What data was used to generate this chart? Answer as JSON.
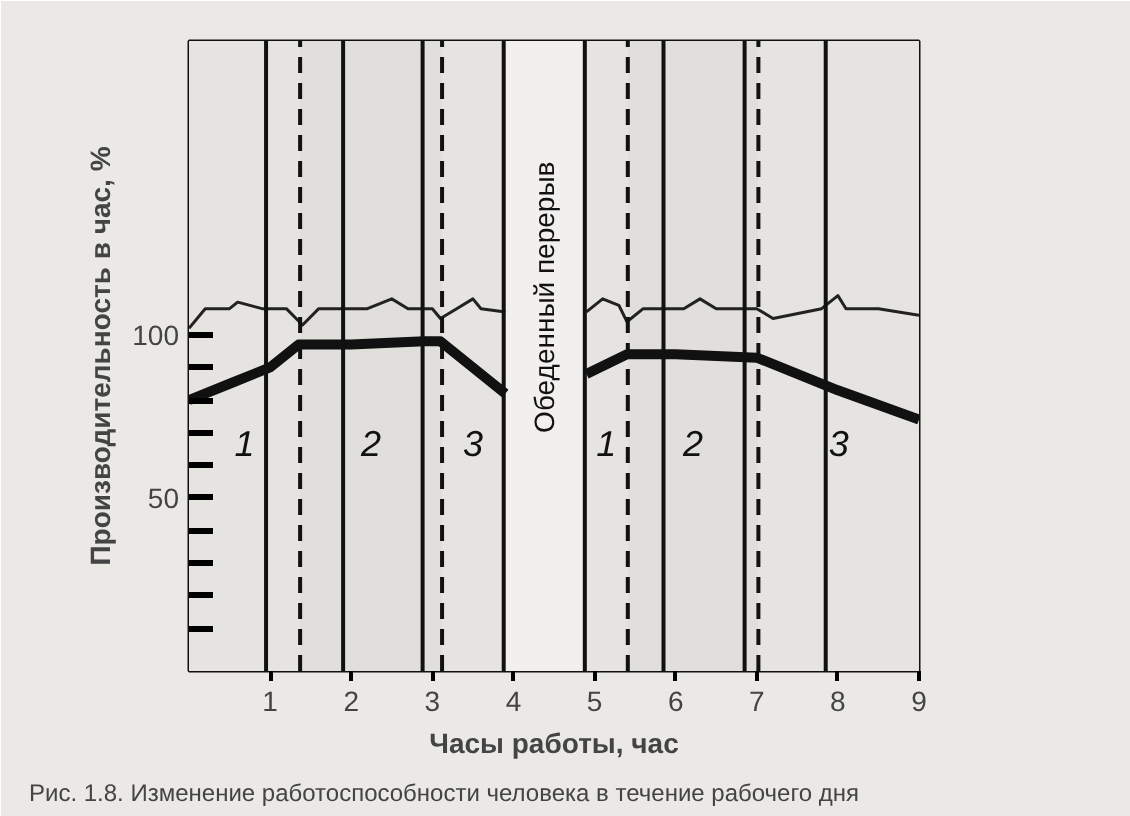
{
  "chart_data": {
    "type": "line",
    "xlabel": "Часы работы, час",
    "ylabel": "Производительность в час, %",
    "xlim": [
      0,
      9
    ],
    "ylim": [
      -3,
      190
    ],
    "xticks": [
      1,
      2,
      3,
      4,
      5,
      6,
      7,
      8,
      9
    ],
    "yticks": [
      {
        "value": 10,
        "label": null
      },
      {
        "value": 20,
        "label": null
      },
      {
        "value": 30,
        "label": null
      },
      {
        "value": 40,
        "label": null
      },
      50,
      {
        "value": 60,
        "label": null
      },
      {
        "value": 70,
        "label": null
      },
      {
        "value": 80,
        "label": null
      },
      {
        "value": 90,
        "label": null
      },
      100
    ],
    "grid": false,
    "marker": "none",
    "line_style": "solid",
    "x": [
      0,
      0.5,
      1,
      1.35,
      2,
      2.9,
      3.1,
      3.9,
      4.4,
      4.9,
      5.4,
      6,
      7,
      8,
      9
    ],
    "series": [
      {
        "color": "#111111",
        "values": [
          80,
          85,
          90,
          97,
          97,
          98,
          98,
          82,
          null,
          88,
          94,
          94,
          93,
          83,
          74
        ]
      },
      {
        "color": "#222222",
        "x": [
          0,
          0.2,
          0.5,
          0.6,
          0.9,
          1.2,
          1.4,
          1.6,
          2.2,
          2.5,
          2.7,
          3.0,
          3.1,
          3.3,
          3.5,
          3.6,
          3.9,
          4.4,
          4.9,
          5.1,
          5.3,
          5.4,
          5.6,
          6.1,
          6.3,
          6.5,
          7.0,
          7.2,
          7.8,
          8.0,
          8.1,
          8.5,
          9
        ],
        "values": [
          102,
          108,
          108,
          110,
          108,
          108,
          103,
          108,
          108,
          111,
          108,
          108,
          105,
          108,
          111,
          108,
          107,
          null,
          107,
          111,
          109,
          104,
          108,
          108,
          111,
          108,
          108,
          105,
          108,
          112,
          108,
          108,
          106
        ]
      }
    ],
    "ref_lines": [
      {
        "axis": "x",
        "value": 0.95,
        "line_style": "solid",
        "color": "#111111"
      },
      {
        "axis": "x",
        "value": 1.37,
        "line_style": "dashed",
        "color": "#111111"
      },
      {
        "axis": "x",
        "value": 1.9,
        "line_style": "solid",
        "color": "#111111"
      },
      {
        "axis": "x",
        "value": 2.88,
        "line_style": "solid",
        "color": "#111111"
      },
      {
        "axis": "x",
        "value": 3.12,
        "line_style": "dashed",
        "color": "#111111"
      },
      {
        "axis": "x",
        "value": 3.88,
        "line_style": "solid",
        "color": "#111111"
      },
      {
        "axis": "x",
        "value": 4.88,
        "line_style": "solid",
        "color": "#111111"
      },
      {
        "axis": "x",
        "value": 5.41,
        "line_style": "dashed",
        "color": "#111111"
      },
      {
        "axis": "x",
        "value": 5.85,
        "line_style": "solid",
        "color": "#111111"
      },
      {
        "axis": "x",
        "value": 6.85,
        "line_style": "solid",
        "color": "#111111"
      },
      {
        "axis": "x",
        "value": 7.02,
        "line_style": "dashed",
        "color": "#111111"
      },
      {
        "axis": "x",
        "value": 7.85,
        "line_style": "solid",
        "color": "#111111"
      }
    ],
    "bands": [
      {
        "axis": "x",
        "from": 0,
        "to": 1.37,
        "label": "1",
        "color": "#e6e4e0"
      },
      {
        "axis": "x",
        "from": 1.37,
        "to": 3.12,
        "label": "2",
        "color": "#e1dfdb"
      },
      {
        "axis": "x",
        "from": 3.12,
        "to": 3.88,
        "label": "3",
        "color": "#e6e4e0"
      },
      {
        "axis": "x",
        "from": 3.88,
        "to": 4.88,
        "label": "Обеденный перерыв",
        "color": "#f1f0ee"
      },
      {
        "axis": "x",
        "from": 4.88,
        "to": 5.41,
        "label": "1",
        "color": "#e6e4e0"
      },
      {
        "axis": "x",
        "from": 5.41,
        "to": 7.02,
        "label": "2",
        "color": "#e1dfdb"
      },
      {
        "axis": "x",
        "from": 7.02,
        "to": 9,
        "label": "3",
        "color": "#e6e4e0"
      }
    ],
    "annotations": [
      "Рис. 1.8. Изменение работоспособности человека в течение рабочего дня"
    ]
  }
}
